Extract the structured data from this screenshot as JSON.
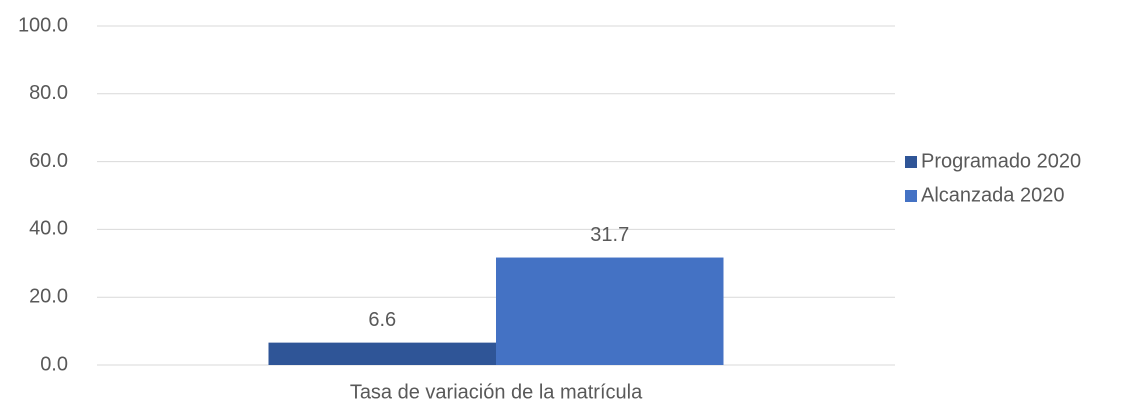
{
  "chart_data": {
    "type": "bar",
    "categories": [
      "Tasa de variación de la matrícula"
    ],
    "series": [
      {
        "name": "Programado 2020",
        "color": "#2f5597",
        "values": [
          6.6
        ]
      },
      {
        "name": "Alcanzada 2020",
        "color": "#4472c4",
        "values": [
          31.7
        ]
      }
    ],
    "ylim": [
      0,
      100
    ],
    "yticks": [
      {
        "value": 0,
        "label": "0.0"
      },
      {
        "value": 20,
        "label": "20.0"
      },
      {
        "value": 40,
        "label": "40.0"
      },
      {
        "value": 60,
        "label": "60.0"
      },
      {
        "value": 80,
        "label": "80.0"
      },
      {
        "value": 100,
        "label": "100.0"
      }
    ],
    "grid": true,
    "legend": "right"
  }
}
